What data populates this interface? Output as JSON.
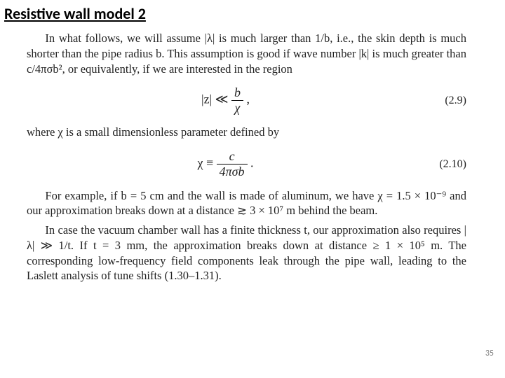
{
  "title": "Resistive wall model 2",
  "pageNumber": "35",
  "para1": "In what follows, we will assume |λ| is much larger than 1/b, i.e., the skin depth is much shorter than the pipe radius b. This assumption is good if wave number |k| is much greater than c/4πσb², or equivalently, if we are interested in the region",
  "eq1": {
    "lhs": "|z| ≪ ",
    "num": "b",
    "den": "χ",
    "tail": " ,",
    "no": "(2.9)"
  },
  "para2": "where χ is a small dimensionless parameter defined by",
  "eq2": {
    "lhs": "χ ≡ ",
    "num": "c",
    "den": "4πσb",
    "tail": " .",
    "no": "(2.10)"
  },
  "para3": "For example, if b = 5 cm and the wall is made of aluminum, we have χ = 1.5 × 10⁻⁹ and our approximation breaks down at a distance ≳ 3 × 10⁷ m behind the beam.",
  "para4": "In case the vacuum chamber wall has a finite thickness t, our approximation also requires |λ| ≫ 1/t. If t = 3 mm, the approximation breaks down at distance ≥ 1 × 10⁵ m. The corresponding low-frequency field components leak through the pipe wall, leading to the Laslett analysis of tune shifts (1.30–1.31)."
}
